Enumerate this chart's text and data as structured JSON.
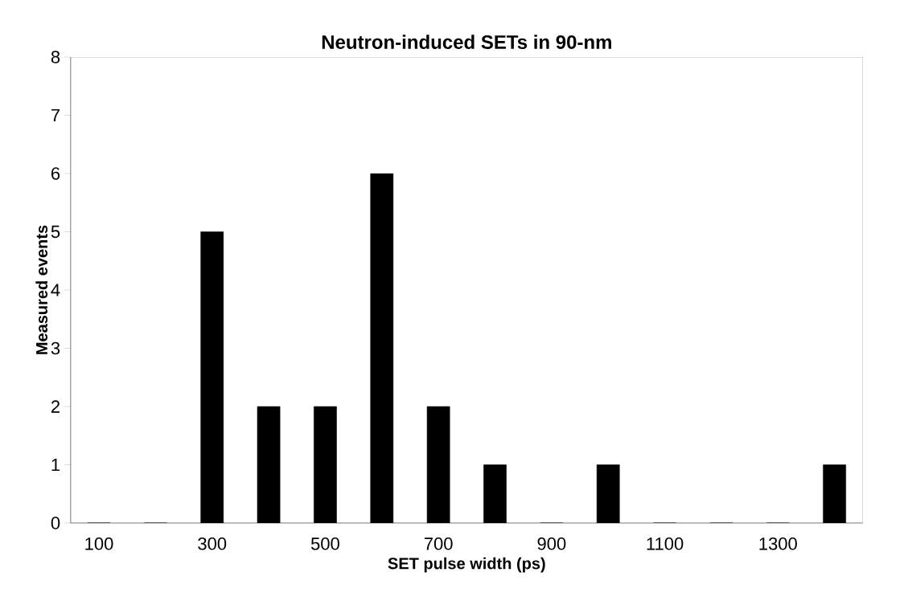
{
  "chart_data": {
    "type": "bar",
    "title": "Neutron-induced SETs in 90-nm",
    "xlabel": "SET pulse width (ps)",
    "ylabel": "Measured events",
    "categories": [
      "100",
      null,
      "300",
      null,
      "500",
      null,
      "700",
      null,
      "900",
      null,
      "1100",
      null,
      "1300",
      null
    ],
    "values": [
      0,
      0,
      5,
      2,
      2,
      6,
      2,
      1,
      0,
      1,
      0,
      0,
      0,
      1
    ],
    "color": "#000000",
    "ylim": [
      0,
      8
    ],
    "yticks": [
      0,
      1,
      2,
      3,
      4,
      5,
      6,
      7,
      8
    ],
    "grid": false
  }
}
